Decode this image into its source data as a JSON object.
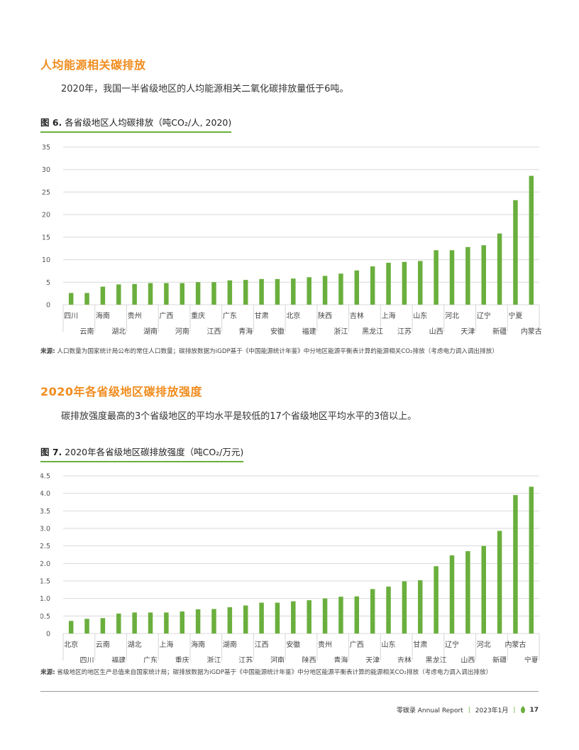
{
  "section1": {
    "title": "人均能源相关碳排放",
    "intro": "2020年，我国一半省级地区的人均能源相关二氧化碳排放量低于6吨。",
    "figure_label": "图 6.",
    "figure_title": "各省级地区人均碳排放（吨CO₂/人, 2020)",
    "source_label": "来源:",
    "source_text": "人口数量为国家统计局公布的常住人口数量；碳排放数据为iGDP基于《中国能源统计年鉴》中分地区能源平衡表计算的能源相关CO₂排放（考虑电力调入调出排放）"
  },
  "section2": {
    "title": "2020年各省级地区碳排放强度",
    "intro": "碳排放强度最高的3个省级地区的平均水平是较低的17个省级地区平均水平的3倍以上。",
    "figure_label": "图 7.",
    "figure_title": "2020年各省级地区碳排放强度（吨CO₂/万元)",
    "source_label": "来源:",
    "source_text": "省级地区的地区生产总值来自国家统计局；碳排放数据为iGDP基于《中国能源统计年鉴》中分地区能源平衡表计算的能源相关CO₂排放（考虑电力调入调出排放）"
  },
  "footer": {
    "brand": "零碳录 Annual Report",
    "date": "2023年1月",
    "page": "17"
  },
  "colors": {
    "bar": "#6aaf3d",
    "accent": "#f08c1e",
    "grid": "#d9d9d9"
  },
  "chart_data": [
    {
      "type": "bar",
      "title": "各省级地区人均碳排放（吨CO₂/人, 2020)",
      "categories": [
        "四川",
        "云南",
        "海南",
        "湖北",
        "贵州",
        "湖南",
        "广西",
        "河南",
        "重庆",
        "江西",
        "广东",
        "青海",
        "甘肃",
        "安徽",
        "北京",
        "福建",
        "陕西",
        "浙江",
        "吉林",
        "黑龙江",
        "上海",
        "江苏",
        "山东",
        "山西",
        "河北",
        "天津",
        "辽宁",
        "新疆",
        "宁夏",
        "内蒙古"
      ],
      "values": [
        2.6,
        2.6,
        4.0,
        4.5,
        4.6,
        4.8,
        4.8,
        4.8,
        5.0,
        5.0,
        5.4,
        5.5,
        5.7,
        5.7,
        5.8,
        6.1,
        6.4,
        6.9,
        7.6,
        8.5,
        9.3,
        9.5,
        9.7,
        12.1,
        12.1,
        12.8,
        13.2,
        15.8,
        23.2,
        28.6
      ],
      "ylim": [
        0,
        35
      ],
      "yticks": [
        0,
        5,
        10,
        15,
        20,
        25,
        30,
        35
      ],
      "grid": true
    },
    {
      "type": "bar",
      "title": "2020年各省级地区碳排放强度（吨CO₂/万元)",
      "categories": [
        "北京",
        "四川",
        "云南",
        "福建",
        "湖北",
        "广东",
        "上海",
        "重庆",
        "海南",
        "浙江",
        "湖南",
        "江苏",
        "江西",
        "河南",
        "安徽",
        "陕西",
        "贵州",
        "青海",
        "广西",
        "天津",
        "山东",
        "吉林",
        "甘肃",
        "黑龙江",
        "辽宁",
        "山西",
        "河北",
        "新疆",
        "内蒙古",
        "宁夏"
      ],
      "values": [
        0.36,
        0.42,
        0.44,
        0.57,
        0.6,
        0.6,
        0.6,
        0.63,
        0.69,
        0.7,
        0.75,
        0.8,
        0.88,
        0.88,
        0.92,
        0.95,
        1.0,
        1.05,
        1.06,
        1.27,
        1.34,
        1.49,
        1.52,
        1.92,
        2.23,
        2.35,
        2.5,
        2.93,
        3.95,
        4.19
      ],
      "ylim": [
        0,
        4.5
      ],
      "yticks": [
        "0",
        "0.5",
        "1.0",
        "1.5",
        "2.0",
        "2.5",
        "3.0",
        "3.5",
        "4.0",
        "4.5"
      ],
      "grid": true
    }
  ]
}
